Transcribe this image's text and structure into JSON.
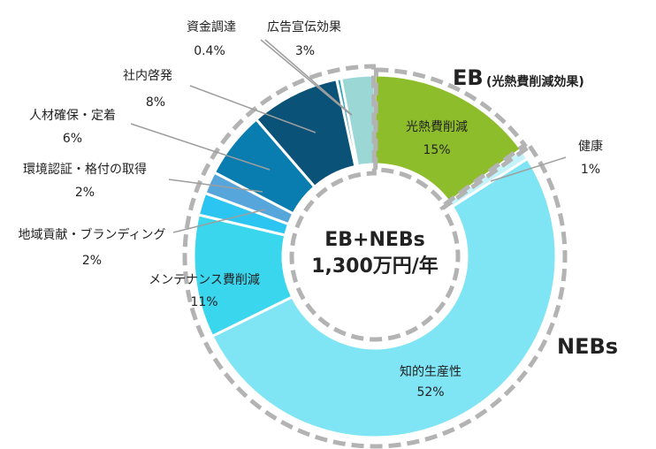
{
  "chart_data": {
    "type": "pie",
    "variant": "donut",
    "center_label": [
      "EB+NEBs",
      "1,300万円/年"
    ],
    "slices": [
      {
        "label": "光熱費削減",
        "value": 15,
        "display": "15%",
        "color": "#8dbd2a",
        "group": "EB"
      },
      {
        "label": "健康",
        "value": 1,
        "display": "1%",
        "color": "#c4f4fa",
        "group": "NEBs"
      },
      {
        "label": "知的生産性",
        "value": 52,
        "display": "52%",
        "color": "#7fe4f4",
        "group": "NEBs"
      },
      {
        "label": "メンテナンス費削減",
        "value": 11,
        "display": "11%",
        "color": "#3ad6ee",
        "group": "NEBs"
      },
      {
        "label": "地域貢献・ブランディング",
        "value": 2,
        "display": "2%",
        "color": "#2cc5f2",
        "group": "NEBs"
      },
      {
        "label": "環境認証・格付の取得",
        "value": 2,
        "display": "2%",
        "color": "#56a6dc",
        "group": "NEBs"
      },
      {
        "label": "人材確保・定着",
        "value": 6,
        "display": "6%",
        "color": "#0a7db0",
        "group": "NEBs"
      },
      {
        "label": "社内啓発",
        "value": 8,
        "display": "8%",
        "color": "#0a5278",
        "group": "NEBs"
      },
      {
        "label": "資金調達",
        "value": 0.4,
        "display": "0.4%",
        "color": "#2aa0ba",
        "group": "NEBs"
      },
      {
        "label": "広告宣伝効果",
        "value": 3,
        "display": "3%",
        "color": "#9bd8d5",
        "group": "NEBs"
      }
    ],
    "groups": [
      {
        "name": "EB",
        "subtitle": "(光熱費削減効果)"
      },
      {
        "name": "NEBs",
        "subtitle": ""
      }
    ]
  }
}
